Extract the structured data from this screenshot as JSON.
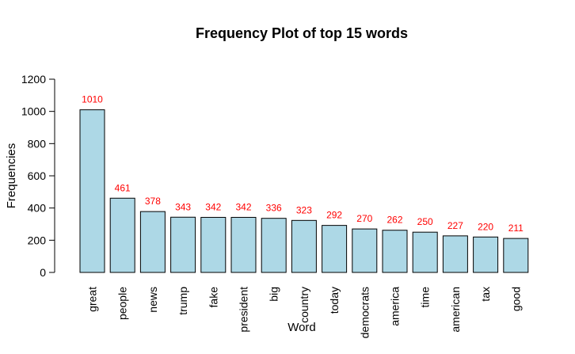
{
  "chart_data": {
    "type": "bar",
    "title": "Frequency Plot of top 15 words",
    "xlabel": "Word",
    "ylabel": "Frequencies",
    "categories": [
      "great",
      "people",
      "news",
      "trump",
      "fake",
      "president",
      "big",
      "country",
      "today",
      "democrats",
      "america",
      "time",
      "american",
      "tax",
      "good"
    ],
    "values": [
      1010,
      461,
      378,
      343,
      342,
      342,
      336,
      323,
      292,
      270,
      262,
      250,
      227,
      220,
      211
    ],
    "value_labels": [
      "1010",
      "461",
      "378",
      "343",
      "342",
      "342",
      "336",
      "323",
      "292",
      "270",
      "262",
      "250",
      "227",
      "220",
      "211"
    ],
    "ylim": [
      0,
      1200
    ],
    "yticks": [
      0,
      200,
      400,
      600,
      800,
      1000,
      1200
    ],
    "ytick_labels": [
      "0",
      "200",
      "400",
      "600",
      "800",
      "1000",
      "1200"
    ],
    "grid": false,
    "legend": "none",
    "colors": {
      "bar_fill": "#add8e6",
      "bar_stroke": "#000000",
      "value_label": "#ff0000"
    }
  }
}
